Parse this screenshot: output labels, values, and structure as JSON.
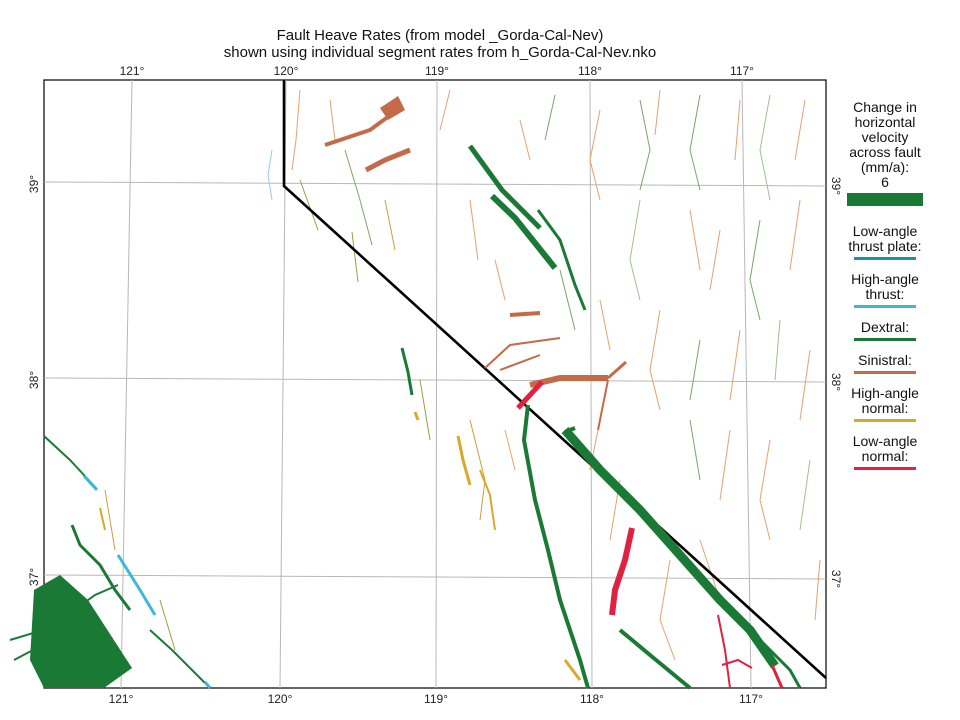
{
  "header": {
    "title": "Fault Heave Rates (from model _Gorda-Cal-Nev)",
    "subtitle": "shown using individual segment rates from h_Gorda-Cal-Nev.nko"
  },
  "axes": {
    "lon_labels": [
      "121°",
      "120°",
      "119°",
      "118°",
      "117°"
    ],
    "lat_labels": [
      "39°",
      "38°",
      "37°"
    ]
  },
  "legend": {
    "scale_title_lines": [
      "Change in",
      "horizontal",
      "velocity",
      "across fault",
      "(mm/a):",
      "6"
    ],
    "items": [
      {
        "lines": [
          "Low-angle",
          "thrust plate:"
        ],
        "color": "#1f8fa8"
      },
      {
        "lines": [
          "High-angle",
          "thrust:"
        ],
        "color": "#3fb7d9"
      },
      {
        "lines": [
          "Dextral:"
        ],
        "color": "#1a7a35"
      },
      {
        "lines": [
          "Sinistral:"
        ],
        "color": "#c46a48"
      },
      {
        "lines": [
          "High-angle",
          "normal:"
        ],
        "color": "#d9a82a"
      },
      {
        "lines": [
          "Low-angle",
          "normal:"
        ],
        "color": "#e0213f"
      }
    ],
    "scale_color": "#1a7a35"
  },
  "colors": {
    "dextral": "#1a7a35",
    "sinistral": "#c46a48",
    "normal_high": "#d9a82a",
    "normal_low": "#e0213f",
    "thrust_high": "#3fb7d9",
    "thin_green": "#7aa66a",
    "thin_orange": "#e8a070"
  }
}
